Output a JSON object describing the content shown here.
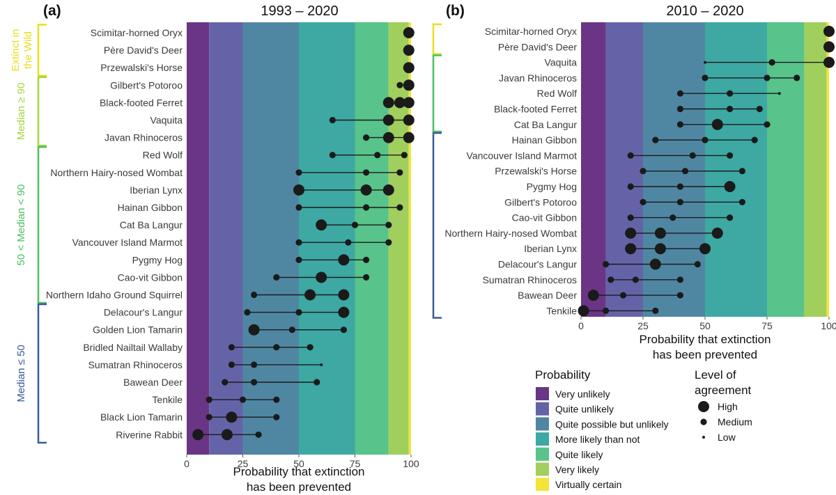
{
  "chart_data": [
    {
      "type": "dot-range",
      "panel": "(a)",
      "title": "1993 – 2020",
      "xlabel": "Probability that extinction\nhas been prevented",
      "xlim": [
        0,
        100
      ],
      "xticks": [
        0,
        25,
        50,
        75,
        100
      ],
      "species": [
        {
          "name": "Scimitar-horned Oryx",
          "points": [
            {
              "x": 99,
              "size": "High"
            }
          ]
        },
        {
          "name": "Père David's Deer",
          "points": [
            {
              "x": 99,
              "size": "High"
            }
          ]
        },
        {
          "name": "Przewalski's Horse",
          "points": [
            {
              "x": 99,
              "size": "High"
            }
          ]
        },
        {
          "name": "Gilbert's Potoroo",
          "points": [
            {
              "x": 95,
              "size": "Medium"
            },
            {
              "x": 99,
              "size": "High"
            }
          ]
        },
        {
          "name": "Black-footed Ferret",
          "points": [
            {
              "x": 90,
              "size": "High"
            },
            {
              "x": 95,
              "size": "High"
            },
            {
              "x": 99,
              "size": "High"
            }
          ]
        },
        {
          "name": "Vaquita",
          "points": [
            {
              "x": 65,
              "size": "Medium"
            },
            {
              "x": 90,
              "size": "High"
            },
            {
              "x": 99,
              "size": "High"
            }
          ]
        },
        {
          "name": "Javan Rhinoceros",
          "points": [
            {
              "x": 80,
              "size": "Medium"
            },
            {
              "x": 90,
              "size": "High"
            },
            {
              "x": 99,
              "size": "High"
            }
          ]
        },
        {
          "name": "Red Wolf",
          "points": [
            {
              "x": 65,
              "size": "Medium"
            },
            {
              "x": 85,
              "size": "Medium"
            },
            {
              "x": 97,
              "size": "Medium"
            }
          ]
        },
        {
          "name": "Northern Hairy-nosed Wombat",
          "points": [
            {
              "x": 50,
              "size": "Medium"
            },
            {
              "x": 80,
              "size": "Medium"
            },
            {
              "x": 95,
              "size": "Medium"
            }
          ]
        },
        {
          "name": "Iberian Lynx",
          "points": [
            {
              "x": 50,
              "size": "High"
            },
            {
              "x": 80,
              "size": "High"
            },
            {
              "x": 90,
              "size": "High"
            }
          ]
        },
        {
          "name": "Hainan Gibbon",
          "points": [
            {
              "x": 50,
              "size": "Medium"
            },
            {
              "x": 80,
              "size": "Medium"
            },
            {
              "x": 95,
              "size": "Medium"
            }
          ]
        },
        {
          "name": "Cat Ba Langur",
          "points": [
            {
              "x": 60,
              "size": "High"
            },
            {
              "x": 75,
              "size": "Medium"
            },
            {
              "x": 90,
              "size": "Medium"
            }
          ]
        },
        {
          "name": "Vancouver Island Marmot",
          "points": [
            {
              "x": 50,
              "size": "Medium"
            },
            {
              "x": 72,
              "size": "Medium"
            },
            {
              "x": 90,
              "size": "Medium"
            }
          ]
        },
        {
          "name": "Pygmy Hog",
          "points": [
            {
              "x": 50,
              "size": "Medium"
            },
            {
              "x": 70,
              "size": "High"
            },
            {
              "x": 80,
              "size": "Medium"
            }
          ]
        },
        {
          "name": "Cao-vit Gibbon",
          "points": [
            {
              "x": 40,
              "size": "Medium"
            },
            {
              "x": 60,
              "size": "High"
            },
            {
              "x": 80,
              "size": "Medium"
            }
          ]
        },
        {
          "name": "Northern Idaho Ground Squirrel",
          "points": [
            {
              "x": 30,
              "size": "Medium"
            },
            {
              "x": 55,
              "size": "High"
            },
            {
              "x": 70,
              "size": "High"
            }
          ]
        },
        {
          "name": "Delacour's Langur",
          "points": [
            {
              "x": 27,
              "size": "Medium"
            },
            {
              "x": 50,
              "size": "Medium"
            },
            {
              "x": 70,
              "size": "High"
            }
          ]
        },
        {
          "name": "Golden Lion Tamarin",
          "points": [
            {
              "x": 30,
              "size": "High"
            },
            {
              "x": 47,
              "size": "Medium"
            },
            {
              "x": 70,
              "size": "Medium"
            }
          ]
        },
        {
          "name": "Bridled Nailtail Wallaby",
          "points": [
            {
              "x": 20,
              "size": "Medium"
            },
            {
              "x": 40,
              "size": "Medium"
            },
            {
              "x": 55,
              "size": "Medium"
            }
          ]
        },
        {
          "name": "Sumatran Rhinoceros",
          "points": [
            {
              "x": 20,
              "size": "Medium"
            },
            {
              "x": 30,
              "size": "Medium"
            },
            {
              "x": 60,
              "size": "Low"
            }
          ]
        },
        {
          "name": "Bawean Deer",
          "points": [
            {
              "x": 17,
              "size": "Medium"
            },
            {
              "x": 30,
              "size": "Medium"
            },
            {
              "x": 58,
              "size": "Medium"
            }
          ]
        },
        {
          "name": "Tenkile",
          "points": [
            {
              "x": 10,
              "size": "Medium"
            },
            {
              "x": 25,
              "size": "Medium"
            },
            {
              "x": 40,
              "size": "Medium"
            }
          ]
        },
        {
          "name": "Black Lion Tamarin",
          "points": [
            {
              "x": 10,
              "size": "Medium"
            },
            {
              "x": 20,
              "size": "High"
            },
            {
              "x": 40,
              "size": "Medium"
            }
          ]
        },
        {
          "name": "Riverine Rabbit",
          "points": [
            {
              "x": 5,
              "size": "High"
            },
            {
              "x": 18,
              "size": "High"
            },
            {
              "x": 32,
              "size": "Medium"
            }
          ]
        }
      ],
      "groups": [
        {
          "label": "Extinct in\nthe Wild",
          "from": "Scimitar-horned Oryx",
          "to": "Przewalski's Horse",
          "color": "#e8e01e"
        },
        {
          "label": "Median ≥ 90",
          "from": "Gilbert's Potoroo",
          "to": "Javan Rhinoceros",
          "color": "#a4d63b"
        },
        {
          "label": "50 < Median < 90",
          "from": "Red Wolf",
          "to": "Northern Idaho Ground Squirrel",
          "color": "#4cbf62"
        },
        {
          "label": "Median ≤ 50",
          "from": "Delacour's Langur",
          "to": "Riverine Rabbit",
          "color": "#3a5a98"
        }
      ]
    },
    {
      "type": "dot-range",
      "panel": "(b)",
      "title": "2010 – 2020",
      "xlabel": "Probability that extinction\nhas been prevented",
      "xlim": [
        0,
        100
      ],
      "xticks": [
        0,
        25,
        50,
        75,
        100
      ],
      "species": [
        {
          "name": "Scimitar-horned Oryx",
          "points": [
            {
              "x": 100,
              "size": "High"
            }
          ]
        },
        {
          "name": "Père David's Deer",
          "points": [
            {
              "x": 100,
              "size": "High"
            }
          ]
        },
        {
          "name": "Vaquita",
          "points": [
            {
              "x": 50,
              "size": "Low"
            },
            {
              "x": 77,
              "size": "Medium"
            },
            {
              "x": 100,
              "size": "High"
            }
          ]
        },
        {
          "name": "Javan Rhinoceros",
          "points": [
            {
              "x": 50,
              "size": "Medium"
            },
            {
              "x": 75,
              "size": "Medium"
            },
            {
              "x": 87,
              "size": "Medium"
            }
          ]
        },
        {
          "name": "Red Wolf",
          "points": [
            {
              "x": 40,
              "size": "Medium"
            },
            {
              "x": 60,
              "size": "Medium"
            },
            {
              "x": 80,
              "size": "Low"
            }
          ]
        },
        {
          "name": "Black-footed Ferret",
          "points": [
            {
              "x": 40,
              "size": "Medium"
            },
            {
              "x": 60,
              "size": "Medium"
            },
            {
              "x": 72,
              "size": "Medium"
            }
          ]
        },
        {
          "name": "Cat Ba Langur",
          "points": [
            {
              "x": 40,
              "size": "Medium"
            },
            {
              "x": 55,
              "size": "High"
            },
            {
              "x": 75,
              "size": "Medium"
            }
          ]
        },
        {
          "name": "Hainan Gibbon",
          "points": [
            {
              "x": 30,
              "size": "Medium"
            },
            {
              "x": 50,
              "size": "Medium"
            },
            {
              "x": 70,
              "size": "Medium"
            }
          ]
        },
        {
          "name": "Vancouver Island Marmot",
          "points": [
            {
              "x": 20,
              "size": "Medium"
            },
            {
              "x": 45,
              "size": "Medium"
            },
            {
              "x": 60,
              "size": "Medium"
            }
          ]
        },
        {
          "name": "Przewalski's Horse",
          "points": [
            {
              "x": 25,
              "size": "Medium"
            },
            {
              "x": 42,
              "size": "Medium"
            },
            {
              "x": 65,
              "size": "Medium"
            }
          ]
        },
        {
          "name": "Pygmy Hog",
          "points": [
            {
              "x": 20,
              "size": "Medium"
            },
            {
              "x": 40,
              "size": "Medium"
            },
            {
              "x": 60,
              "size": "High"
            }
          ]
        },
        {
          "name": "Gilbert's Potoroo",
          "points": [
            {
              "x": 25,
              "size": "Medium"
            },
            {
              "x": 40,
              "size": "Medium"
            },
            {
              "x": 65,
              "size": "Medium"
            }
          ]
        },
        {
          "name": "Cao-vit Gibbon",
          "points": [
            {
              "x": 20,
              "size": "Medium"
            },
            {
              "x": 37,
              "size": "Medium"
            },
            {
              "x": 60,
              "size": "Medium"
            }
          ]
        },
        {
          "name": "Northern Hairy-nosed Wombat",
          "points": [
            {
              "x": 20,
              "size": "High"
            },
            {
              "x": 32,
              "size": "High"
            },
            {
              "x": 55,
              "size": "High"
            }
          ]
        },
        {
          "name": "Iberian Lynx",
          "points": [
            {
              "x": 20,
              "size": "High"
            },
            {
              "x": 32,
              "size": "High"
            },
            {
              "x": 50,
              "size": "High"
            }
          ]
        },
        {
          "name": "Delacour's Langur",
          "points": [
            {
              "x": 10,
              "size": "Medium"
            },
            {
              "x": 30,
              "size": "High"
            },
            {
              "x": 47,
              "size": "Medium"
            }
          ]
        },
        {
          "name": "Sumatran Rhinoceros",
          "points": [
            {
              "x": 12,
              "size": "Medium"
            },
            {
              "x": 22,
              "size": "Medium"
            },
            {
              "x": 40,
              "size": "Medium"
            }
          ]
        },
        {
          "name": "Bawean Deer",
          "points": [
            {
              "x": 5,
              "size": "High"
            },
            {
              "x": 17,
              "size": "Medium"
            },
            {
              "x": 40,
              "size": "Medium"
            }
          ]
        },
        {
          "name": "Tenkile",
          "points": [
            {
              "x": 1,
              "size": "High"
            },
            {
              "x": 10,
              "size": "Medium"
            },
            {
              "x": 30,
              "size": "Medium"
            }
          ]
        }
      ],
      "groups": [
        {
          "label": "",
          "from": "Scimitar-horned Oryx",
          "to": "Père David's Deer",
          "color": "#e8e01e"
        },
        {
          "label": "",
          "from": "Vaquita",
          "to": "Cat Ba Langur",
          "color": "#4cbf62"
        },
        {
          "label": "",
          "from": "Hainan Gibbon",
          "to": "Tenkile",
          "color": "#3a5a98"
        }
      ]
    }
  ],
  "bands": [
    {
      "from": 0,
      "to": 10,
      "label": "Very unlikely",
      "color": "#6a3585"
    },
    {
      "from": 10,
      "to": 25,
      "label": "Quite unlikely",
      "color": "#6563a8"
    },
    {
      "from": 25,
      "to": 50,
      "label": "Quite possible but unlikely",
      "color": "#4f87a3"
    },
    {
      "from": 50,
      "to": 75,
      "label": "More likely than not",
      "color": "#3ea8a3"
    },
    {
      "from": 75,
      "to": 90,
      "label": "Quite likely",
      "color": "#58c38a"
    },
    {
      "from": 90,
      "to": 99,
      "label": "Very likely",
      "color": "#a0cf5d"
    },
    {
      "from": 99,
      "to": 100,
      "label": "Virtually certain",
      "color": "#f2e43a"
    }
  ],
  "legend": {
    "probability_title": "Probability",
    "agreement_title": "Level of\nagreement",
    "agreement_levels": [
      {
        "label": "High",
        "size": "High"
      },
      {
        "label": "Medium",
        "size": "Medium"
      },
      {
        "label": "Low",
        "size": "Low"
      }
    ]
  }
}
